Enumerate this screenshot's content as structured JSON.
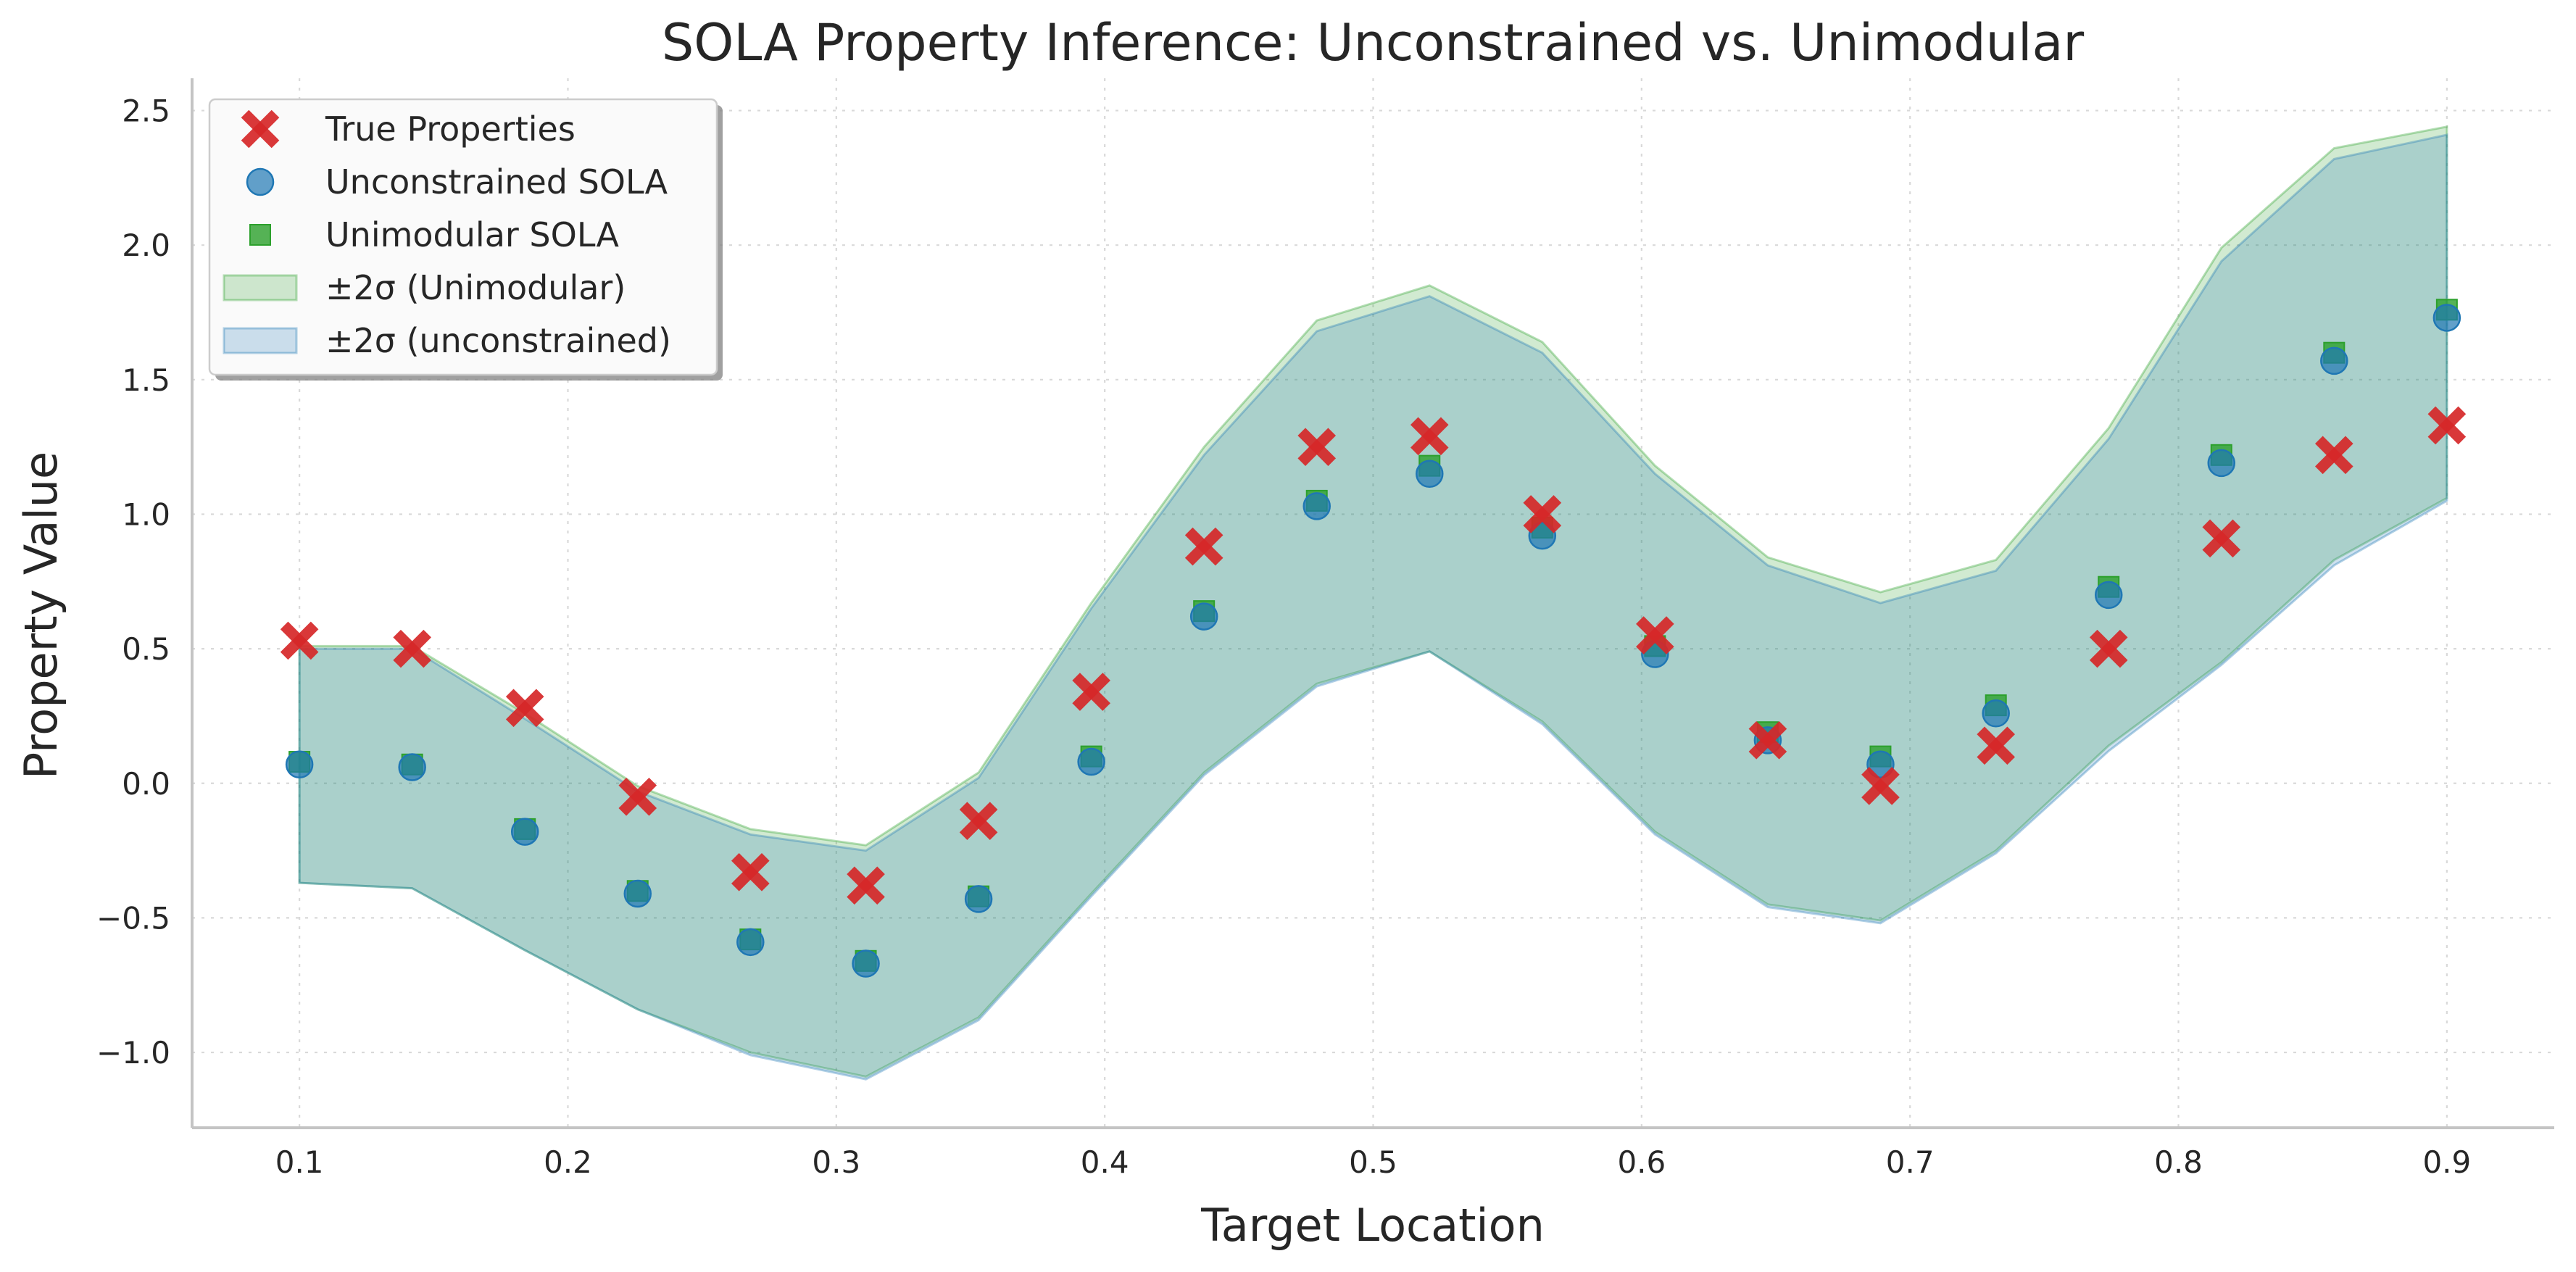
{
  "chart_data": {
    "type": "scatter",
    "title": "SOLA Property Inference: Unconstrained vs. Unimodular",
    "xlabel": "Target Location",
    "ylabel": "Property Value",
    "xlim": [
      0.06,
      0.94
    ],
    "ylim": [
      -1.28,
      2.62
    ],
    "xticks": [
      0.1,
      0.2,
      0.3,
      0.4,
      0.5,
      0.6,
      0.7,
      0.8,
      0.9
    ],
    "xtick_labels": [
      "0.1",
      "0.2",
      "0.3",
      "0.4",
      "0.5",
      "0.6",
      "0.7",
      "0.8",
      "0.9"
    ],
    "yticks": [
      -1.0,
      -0.5,
      0.0,
      0.5,
      1.0,
      1.5,
      2.0,
      2.5
    ],
    "ytick_labels": [
      "−1.0",
      "−0.5",
      "0.0",
      "0.5",
      "1.0",
      "1.5",
      "2.0",
      "2.5"
    ],
    "grid": true,
    "legend_position": "top-left",
    "x": [
      0.1,
      0.142,
      0.184,
      0.226,
      0.268,
      0.311,
      0.353,
      0.395,
      0.437,
      0.479,
      0.521,
      0.563,
      0.605,
      0.647,
      0.689,
      0.732,
      0.774,
      0.816,
      0.858,
      0.9
    ],
    "series": [
      {
        "name": "True Properties",
        "marker": "x",
        "color": "#d62728",
        "values": [
          0.53,
          0.5,
          0.28,
          -0.05,
          -0.33,
          -0.38,
          -0.14,
          0.34,
          0.88,
          1.25,
          1.29,
          1.0,
          0.55,
          0.16,
          -0.01,
          0.14,
          0.5,
          0.91,
          1.22,
          1.33
        ]
      },
      {
        "name": "Unconstrained SOLA",
        "marker": "circle",
        "color": "#1f77b4",
        "values": [
          0.07,
          0.06,
          -0.18,
          -0.41,
          -0.59,
          -0.67,
          -0.43,
          0.08,
          0.62,
          1.03,
          1.15,
          0.92,
          0.48,
          0.16,
          0.07,
          0.26,
          0.7,
          1.19,
          1.57,
          1.73
        ]
      },
      {
        "name": "Unimodular SOLA",
        "marker": "square",
        "color": "#2ca02c",
        "values": [
          0.08,
          0.07,
          -0.17,
          -0.4,
          -0.58,
          -0.66,
          -0.42,
          0.1,
          0.64,
          1.05,
          1.18,
          0.95,
          0.51,
          0.19,
          0.1,
          0.29,
          0.73,
          1.22,
          1.6,
          1.76
        ]
      }
    ],
    "bands": [
      {
        "name": "±2σ (Unimodular)",
        "color": "#2ca02c",
        "lower": [
          -0.37,
          -0.39,
          -0.62,
          -0.84,
          -1.0,
          -1.09,
          -0.87,
          -0.41,
          0.04,
          0.37,
          0.49,
          0.23,
          -0.18,
          -0.45,
          -0.51,
          -0.25,
          0.14,
          0.45,
          0.83,
          1.06
        ],
        "upper": [
          0.51,
          0.51,
          0.26,
          -0.01,
          -0.17,
          -0.23,
          0.04,
          0.67,
          1.25,
          1.72,
          1.85,
          1.64,
          1.18,
          0.84,
          0.71,
          0.83,
          1.32,
          1.99,
          2.36,
          2.44
        ]
      },
      {
        "name": "±2σ (unconstrained)",
        "color": "#1f77b4",
        "lower": [
          -0.37,
          -0.39,
          -0.62,
          -0.84,
          -1.01,
          -1.1,
          -0.88,
          -0.42,
          0.03,
          0.36,
          0.49,
          0.22,
          -0.19,
          -0.46,
          -0.52,
          -0.26,
          0.12,
          0.44,
          0.81,
          1.05
        ],
        "upper": [
          0.5,
          0.5,
          0.24,
          -0.03,
          -0.19,
          -0.25,
          0.02,
          0.65,
          1.22,
          1.68,
          1.81,
          1.6,
          1.15,
          0.81,
          0.67,
          0.79,
          1.28,
          1.94,
          2.32,
          2.41
        ]
      }
    ]
  }
}
